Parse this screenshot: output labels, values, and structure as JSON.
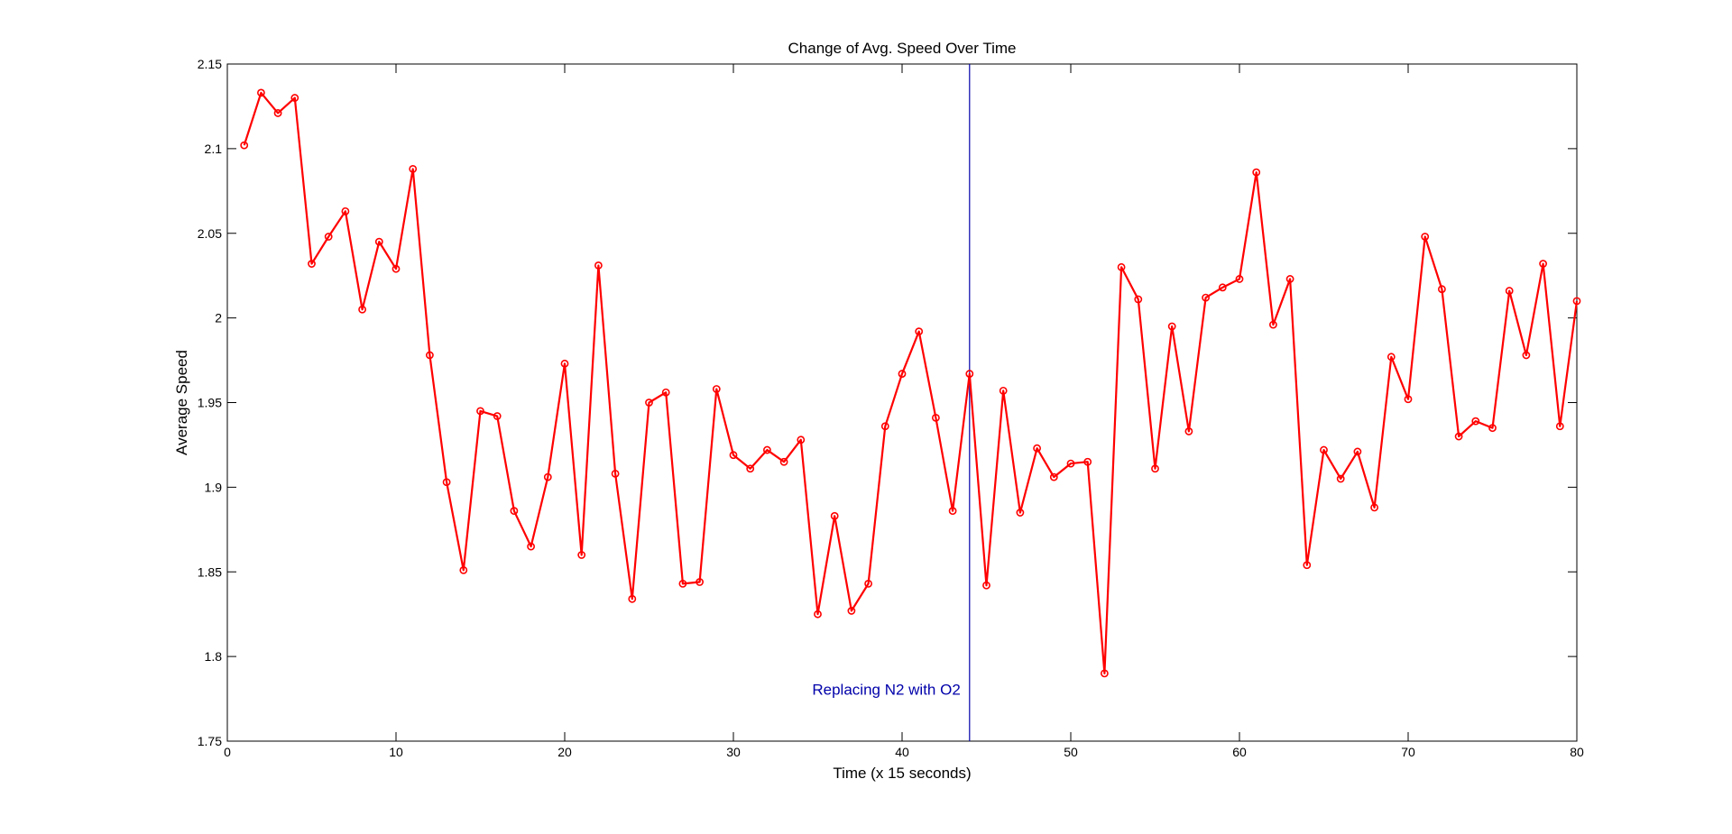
{
  "chart_data": {
    "type": "line",
    "title": "Change of Avg. Speed Over Time",
    "xlabel": "Time (x 15 seconds)",
    "ylabel": "Average Speed",
    "xlim": [
      0,
      80
    ],
    "ylim": [
      1.75,
      2.15
    ],
    "xticks": [
      0,
      10,
      20,
      30,
      40,
      50,
      60,
      70,
      80
    ],
    "xtick_labels": [
      "0",
      "10",
      "20",
      "30",
      "40",
      "50",
      "60",
      "70",
      "80"
    ],
    "yticks": [
      1.75,
      1.8,
      1.85,
      1.9,
      1.95,
      2.0,
      2.05,
      2.1,
      2.15
    ],
    "ytick_labels": [
      "1.75",
      "1.8",
      "1.85",
      "1.9",
      "1.95",
      "2",
      "2.05",
      "2.1",
      "2.15"
    ],
    "grid": false,
    "series": [
      {
        "color": "#ff0000",
        "marker": "circle",
        "x": [
          1,
          2,
          3,
          4,
          5,
          6,
          7,
          8,
          9,
          10,
          11,
          12,
          13,
          14,
          15,
          16,
          17,
          18,
          19,
          20,
          21,
          22,
          23,
          24,
          25,
          26,
          27,
          28,
          29,
          30,
          31,
          32,
          33,
          34,
          35,
          36,
          37,
          38,
          39,
          40,
          41,
          42,
          43,
          44,
          45,
          46,
          47,
          48,
          49,
          50,
          51,
          52,
          53,
          54,
          55,
          56,
          57,
          58,
          59,
          60,
          61,
          62,
          63,
          64,
          65,
          66,
          67,
          68,
          69,
          70,
          71,
          72,
          73,
          74,
          75,
          76,
          77,
          78,
          79,
          80
        ],
        "y": [
          2.102,
          2.133,
          2.121,
          2.13,
          2.032,
          2.048,
          2.063,
          2.005,
          2.045,
          2.029,
          2.088,
          1.978,
          1.903,
          1.851,
          1.945,
          1.942,
          1.886,
          1.865,
          1.906,
          1.973,
          1.86,
          2.031,
          1.908,
          1.834,
          1.95,
          1.956,
          1.843,
          1.844,
          1.958,
          1.919,
          1.911,
          1.922,
          1.915,
          1.928,
          1.825,
          1.883,
          1.827,
          1.843,
          1.936,
          1.967,
          1.992,
          1.941,
          1.886,
          1.967,
          1.842,
          1.957,
          1.885,
          1.923,
          1.906,
          1.914,
          1.915,
          1.79,
          2.03,
          2.011,
          1.911,
          1.995,
          1.933,
          2.012,
          2.018,
          2.023,
          2.086,
          1.996,
          2.023,
          1.854,
          1.922,
          1.905,
          1.921,
          1.888,
          1.977,
          1.952,
          2.048,
          2.017,
          1.93,
          1.939,
          1.935,
          2.016,
          1.978,
          2.032,
          1.936,
          2.01
        ]
      }
    ],
    "annotations": [
      {
        "type": "vline",
        "x": 44,
        "color": "#0000aa",
        "text": "Replacing N2 with O2"
      }
    ]
  }
}
